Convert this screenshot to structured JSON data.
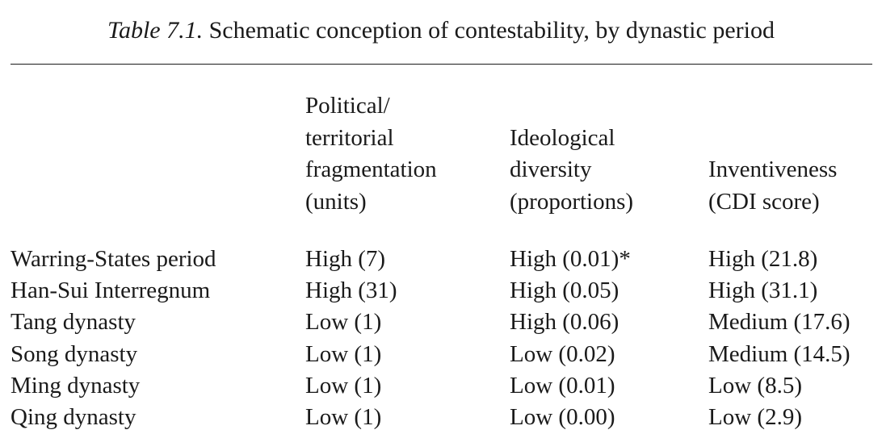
{
  "caption": {
    "label": "Table 7.1.",
    "text": " Schematic conception of contestability, by dynastic period"
  },
  "columns": [
    "Political/\nterritorial\nfragmentation\n(units)",
    "Ideological\ndiversity\n(proportions)",
    "Inventiveness\n(CDI score)"
  ],
  "rows": [
    [
      "Warring-States period",
      "High (7)",
      "High (0.01)*",
      "High (21.8)"
    ],
    [
      "Han-Sui Interregnum",
      "High (31)",
      "High (0.05)",
      "High (31.1)"
    ],
    [
      "Tang dynasty",
      "Low (1)",
      "High (0.06)",
      "Medium (17.6)"
    ],
    [
      "Song dynasty",
      "Low (1)",
      "Low (0.02)",
      "Medium (14.5)"
    ],
    [
      "Ming dynasty",
      "Low (1)",
      "Low (0.01)",
      "Low (8.5)"
    ],
    [
      "Qing dynasty",
      "Low (1)",
      "Low (0.00)",
      "Low (2.9)"
    ]
  ]
}
